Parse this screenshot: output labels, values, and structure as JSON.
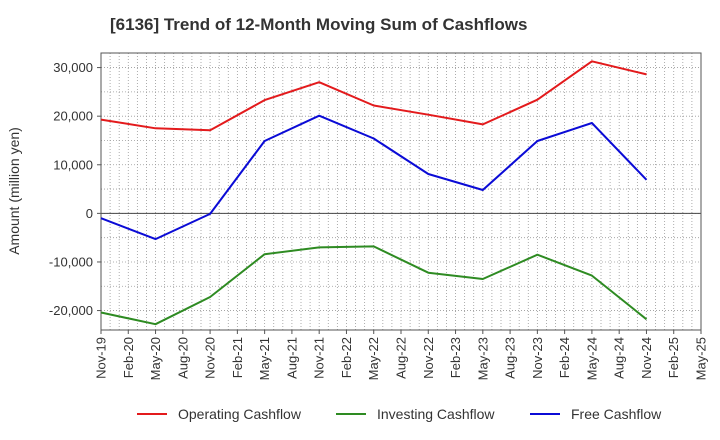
{
  "chart_data": {
    "type": "line",
    "title": "[6136]  Trend of 12-Month Moving Sum of Cashflows",
    "xlabel": "",
    "ylabel": "Amount (million yen)",
    "x": [
      "Nov-19",
      "Feb-20",
      "May-20",
      "Aug-20",
      "Nov-20",
      "Feb-21",
      "May-21",
      "Aug-21",
      "Nov-21",
      "Feb-22",
      "May-22",
      "Aug-22",
      "Nov-22",
      "Feb-23",
      "May-23",
      "Aug-23",
      "Nov-23",
      "Feb-24",
      "May-24",
      "Aug-24",
      "Nov-24",
      "Feb-25",
      "May-25"
    ],
    "ylim": [
      -24000,
      33000
    ],
    "yticks": [
      -20000,
      -10000,
      0,
      10000,
      20000,
      30000
    ],
    "ytick_labels": [
      "-20,000",
      "-10,000",
      "0",
      "10,000",
      "20,000",
      "30,000"
    ],
    "grid": true,
    "legend_position": "bottom",
    "series": [
      {
        "name": "Operating Cashflow",
        "color": "#e31a1c",
        "x": [
          "Nov-19",
          "May-20",
          "Nov-20",
          "May-21",
          "Nov-21",
          "May-22",
          "Nov-22",
          "May-23",
          "Nov-23",
          "May-24",
          "Nov-24"
        ],
        "values": [
          19300,
          17500,
          17100,
          23300,
          27000,
          22200,
          20300,
          18300,
          23400,
          31300,
          28600
        ]
      },
      {
        "name": "Investing Cashflow",
        "color": "#2e8b22",
        "x": [
          "Nov-19",
          "May-20",
          "Nov-20",
          "May-21",
          "Nov-21",
          "May-22",
          "Nov-22",
          "May-23",
          "Nov-23",
          "May-24",
          "Nov-24"
        ],
        "values": [
          -20400,
          -22800,
          -17200,
          -8400,
          -7000,
          -6800,
          -12200,
          -13500,
          -8500,
          -12800,
          -21800
        ]
      },
      {
        "name": "Free Cashflow",
        "color": "#0b0bd6",
        "x": [
          "Nov-19",
          "May-20",
          "Nov-20",
          "May-21",
          "Nov-21",
          "May-22",
          "Nov-22",
          "May-23",
          "Nov-23",
          "May-24",
          "Nov-24"
        ],
        "values": [
          -1000,
          -5300,
          -100,
          14900,
          20100,
          15400,
          8100,
          4800,
          14900,
          18600,
          6900
        ]
      }
    ]
  }
}
